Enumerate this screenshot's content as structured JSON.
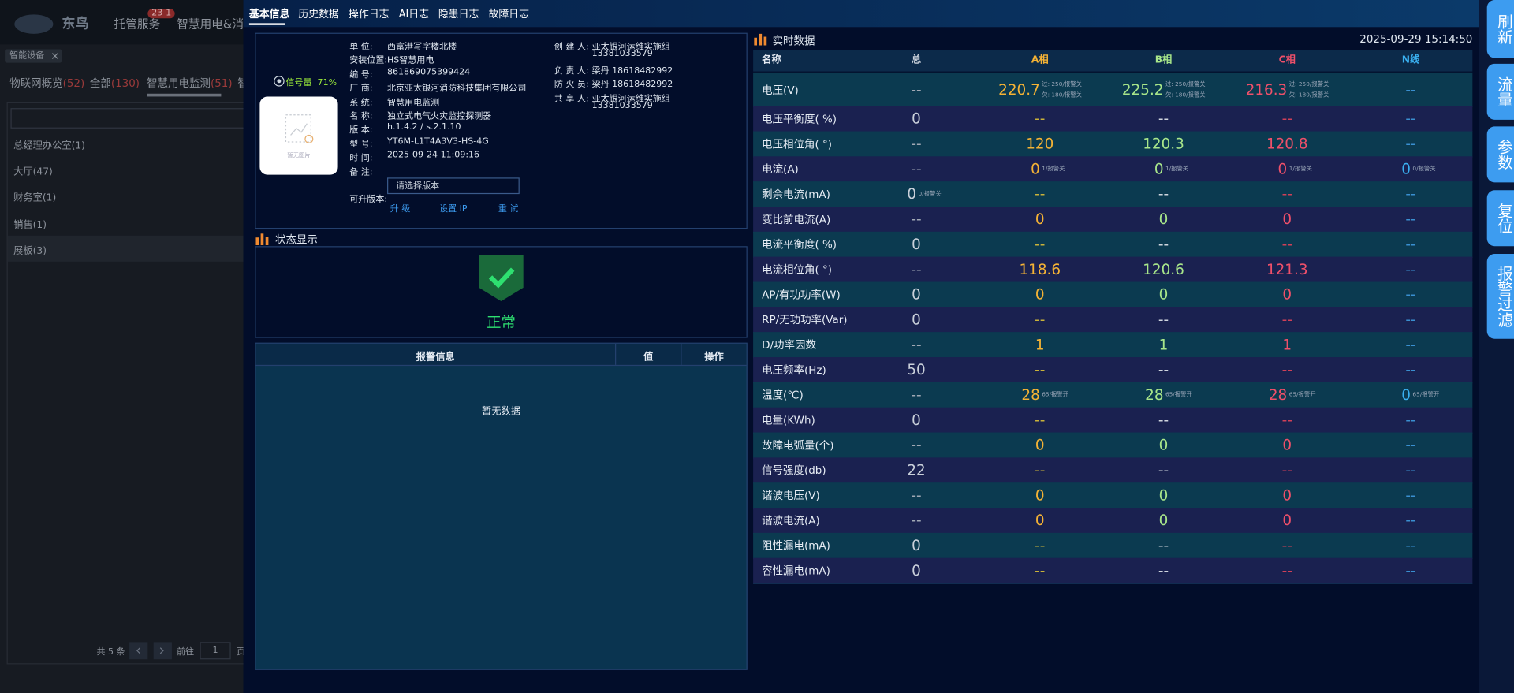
{
  "background": {
    "logo": "东鸟",
    "nav": [
      "托管服务",
      "智慧用电&消防"
    ],
    "badge": "23-1",
    "tag": "智能设备",
    "tabs": [
      {
        "label": "物联网概览",
        "count": "(52)"
      },
      {
        "label": "全部",
        "count": "(130)"
      },
      {
        "label": "智慧用电监测",
        "count": "(51)"
      },
      {
        "label": "智"
      }
    ],
    "tree": [
      "总经理办公室(1)",
      "大厅(47)",
      "财务室(1)",
      "销售(1)",
      "展板(3)"
    ],
    "pagination": {
      "total": "共 5 条",
      "goto": "前往",
      "page": "1",
      "unit": "页"
    }
  },
  "tabs": [
    "基本信息",
    "历史数据",
    "操作日志",
    "AI日志",
    "隐患日志",
    "故障日志"
  ],
  "device": {
    "signal_label": "信号量",
    "signal_value": "71%",
    "image_text": "暂无图片",
    "fields": [
      {
        "label": "单 位:",
        "value": "西富港写字楼北楼"
      },
      {
        "label": "安装位置:",
        "value": "HS智慧用电"
      },
      {
        "label": "编 号:",
        "value": "861869075399424"
      },
      {
        "label": "厂 商:",
        "value": "北京亚太银河消防科技集团有限公司"
      },
      {
        "label": "系 统:",
        "value": "智慧用电监测"
      },
      {
        "label": "名 称:",
        "value": "独立式电气火灾监控探测器"
      },
      {
        "label": "版 本:",
        "value": "h.1.4.2 / s.2.1.10"
      },
      {
        "label": "型 号:",
        "value": "YT6M-L1T4A3V3-HS-4G"
      },
      {
        "label": "时 间:",
        "value": "2025-09-24 11:09:16"
      },
      {
        "label": "备 注:"
      }
    ],
    "upgrade_label": "可升版本:",
    "select_placeholder": "请选择版本",
    "buttons": [
      "升 级",
      "设置 IP",
      "重 试"
    ],
    "contacts": [
      {
        "label": "创 建 人:",
        "lines": [
          "亚太银河运维实施组",
          "13381033579"
        ]
      },
      {
        "label": "负 责 人:",
        "lines": [
          "梁丹 18618482992"
        ]
      },
      {
        "label": "防 火 员:",
        "lines": [
          "梁丹 18618482992"
        ]
      },
      {
        "label": "共 享 人:",
        "lines": [
          "亚太银河运维实施组",
          "13381033579"
        ]
      }
    ]
  },
  "status": {
    "title": "状态显示",
    "text": "正常"
  },
  "alarms": {
    "columns": [
      "报警信息",
      "值",
      "操作"
    ],
    "empty": "暂无数据"
  },
  "realtime": {
    "title": "实时数据",
    "time": "2025-09-29 15:14:50",
    "columns": [
      "名称",
      "总",
      "A相",
      "B相",
      "C相",
      "N线"
    ],
    "rows": [
      {
        "name": "电压(V)",
        "cells": [
          "--",
          {
            "text": "220.7",
            "note": [
              "过: 250/报警关",
              "欠: 180/报警关"
            ]
          },
          {
            "text": "225.2",
            "note": [
              "过: 250/报警关",
              "欠: 180/报警关"
            ]
          },
          {
            "text": "216.3",
            "note": [
              "过: 250/报警关",
              "欠: 180/报警关"
            ]
          },
          "--"
        ]
      },
      {
        "name": "电压平衡度( %)",
        "cells": [
          "0",
          "--",
          "--",
          "--",
          "--"
        ]
      },
      {
        "name": "电压相位角( °)",
        "cells": [
          "--",
          "120",
          "120.3",
          "120.8",
          "--"
        ]
      },
      {
        "name": "电流(A)",
        "cells": [
          "--",
          {
            "text": "0",
            "note": [
              "1/报警关"
            ]
          },
          {
            "text": "0",
            "note": [
              "1/报警关"
            ]
          },
          {
            "text": "0",
            "note": [
              "1/报警关"
            ]
          },
          {
            "text": "0",
            "note": [
              "0/报警关"
            ]
          }
        ]
      },
      {
        "name": "剩余电流(mA)",
        "cells": [
          {
            "text": "0",
            "note": [
              "0/报警关"
            ]
          },
          "--",
          "--",
          "--",
          "--"
        ]
      },
      {
        "name": "变比前电流(A)",
        "cells": [
          "--",
          "0",
          "0",
          "0",
          "--"
        ]
      },
      {
        "name": "电流平衡度( %)",
        "cells": [
          "0",
          "--",
          "--",
          "--",
          "--"
        ]
      },
      {
        "name": "电流相位角( °)",
        "cells": [
          "--",
          "118.6",
          "120.6",
          "121.3",
          "--"
        ]
      },
      {
        "name": "AP/有功功率(W)",
        "cells": [
          "0",
          "0",
          "0",
          "0",
          "--"
        ]
      },
      {
        "name": "RP/无功功率(Var)",
        "cells": [
          "0",
          "--",
          "--",
          "--",
          "--"
        ]
      },
      {
        "name": "D/功率因数",
        "cells": [
          "--",
          "1",
          "1",
          "1",
          "--"
        ]
      },
      {
        "name": "电压频率(Hz)",
        "cells": [
          "50",
          "--",
          "--",
          "--",
          "--"
        ]
      },
      {
        "name": "温度(℃)",
        "cells": [
          "--",
          {
            "text": "28",
            "note": [
              "65/报警开"
            ]
          },
          {
            "text": "28",
            "note": [
              "65/报警开"
            ]
          },
          {
            "text": "28",
            "note": [
              "65/报警开"
            ]
          },
          {
            "text": "0",
            "note": [
              "65/报警开"
            ]
          }
        ]
      },
      {
        "name": "电量(KWh)",
        "cells": [
          "0",
          "--",
          "--",
          "--",
          "--"
        ]
      },
      {
        "name": "故障电弧量(个)",
        "cells": [
          "--",
          "0",
          "0",
          "0",
          "--"
        ]
      },
      {
        "name": "信号强度(db)",
        "cells": [
          "22",
          "--",
          "--",
          "--",
          "--"
        ]
      },
      {
        "name": "谐波电压(V)",
        "cells": [
          "--",
          "0",
          "0",
          "0",
          "--"
        ]
      },
      {
        "name": "谐波电流(A)",
        "cells": [
          "--",
          "0",
          "0",
          "0",
          "--"
        ]
      },
      {
        "name": "阻性漏电(mA)",
        "cells": [
          "0",
          "--",
          "--",
          "--",
          "--"
        ]
      },
      {
        "name": "容性漏电(mA)",
        "cells": [
          "0",
          "--",
          "--",
          "--",
          "--"
        ]
      }
    ]
  },
  "actions": [
    "刷新",
    "流量",
    "参数",
    "复位",
    "报警过滤"
  ]
}
